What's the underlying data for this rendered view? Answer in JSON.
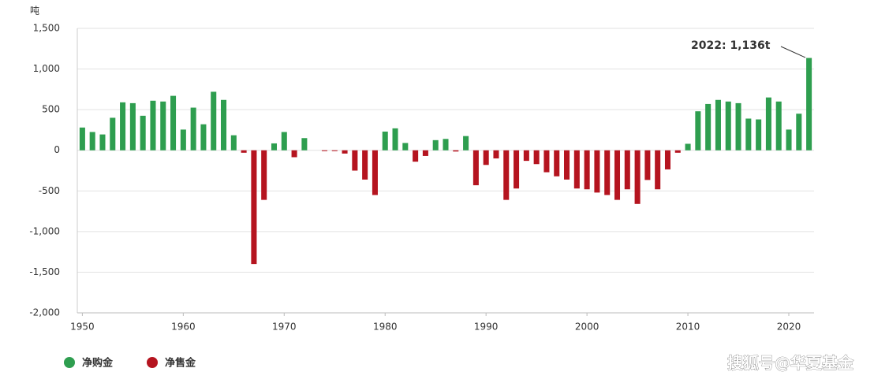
{
  "chart_data": {
    "type": "bar",
    "y_label": "吨",
    "annotation": "2022: 1,136t",
    "watermark": "搜狐号@华夏基金",
    "x": [
      1950,
      1951,
      1952,
      1953,
      1954,
      1955,
      1956,
      1957,
      1958,
      1959,
      1960,
      1961,
      1962,
      1963,
      1964,
      1965,
      1966,
      1967,
      1968,
      1969,
      1970,
      1971,
      1972,
      1973,
      1974,
      1975,
      1976,
      1977,
      1978,
      1979,
      1980,
      1981,
      1982,
      1983,
      1984,
      1985,
      1986,
      1987,
      1988,
      1989,
      1990,
      1991,
      1992,
      1993,
      1994,
      1995,
      1996,
      1997,
      1998,
      1999,
      2000,
      2001,
      2002,
      2003,
      2004,
      2005,
      2006,
      2007,
      2008,
      2009,
      2010,
      2011,
      2012,
      2013,
      2014,
      2015,
      2016,
      2017,
      2018,
      2019,
      2020,
      2021,
      2022
    ],
    "series": [
      {
        "name": "净购金",
        "color": "#2e9e4f",
        "values": [
          280,
          225,
          195,
          400,
          590,
          580,
          425,
          610,
          600,
          670,
          255,
          525,
          320,
          720,
          620,
          185,
          null,
          null,
          null,
          85,
          225,
          null,
          150,
          null,
          null,
          null,
          null,
          null,
          null,
          null,
          230,
          270,
          90,
          null,
          null,
          125,
          140,
          null,
          175,
          null,
          null,
          null,
          null,
          null,
          null,
          null,
          null,
          null,
          null,
          null,
          null,
          null,
          null,
          null,
          null,
          null,
          null,
          null,
          null,
          null,
          80,
          480,
          570,
          620,
          600,
          580,
          390,
          380,
          650,
          600,
          255,
          450,
          1136
        ]
      },
      {
        "name": "净售金",
        "color": "#b5141f",
        "values": [
          null,
          null,
          null,
          null,
          null,
          null,
          null,
          null,
          null,
          null,
          null,
          null,
          null,
          null,
          null,
          null,
          -30,
          -1400,
          -610,
          null,
          null,
          -85,
          null,
          null,
          -10,
          -10,
          -40,
          -250,
          -360,
          -550,
          null,
          null,
          null,
          -140,
          -70,
          null,
          null,
          -15,
          null,
          -430,
          -180,
          -100,
          -610,
          -470,
          -130,
          -170,
          -270,
          -320,
          -360,
          -470,
          -480,
          -520,
          -550,
          -610,
          -480,
          -660,
          -365,
          -480,
          -235,
          -30,
          null,
          null,
          null,
          null,
          null,
          null,
          null,
          null,
          null,
          null,
          null,
          null,
          null
        ]
      }
    ],
    "xlim": [
      1949.5,
      2022.5
    ],
    "xticks": [
      1950,
      1960,
      1970,
      1980,
      1990,
      2000,
      2010,
      2020
    ],
    "ylim": [
      -2000,
      1500
    ],
    "yticks": [
      {
        "value": -2000,
        "label": "-2,000"
      },
      {
        "value": -1500,
        "label": "-1,500"
      },
      {
        "value": -1000,
        "label": "-1,000"
      },
      -500,
      0,
      500,
      {
        "value": 1000,
        "label": "1,000"
      },
      {
        "value": 1500,
        "label": "1,500"
      }
    ],
    "grid": true
  }
}
